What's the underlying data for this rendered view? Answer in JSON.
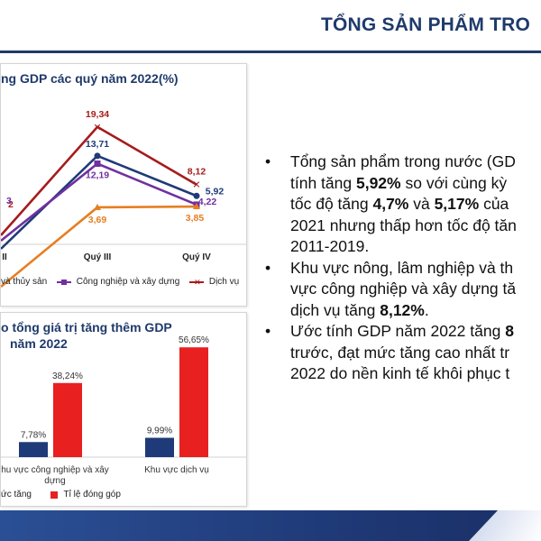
{
  "header": {
    "title": "TỔNG SẢN PHẨM TRO"
  },
  "line_chart": {
    "title": "ng GDP các quý năm 2022(%)",
    "legend": [
      {
        "label": "và thủy sản",
        "color": "#e67e22"
      },
      {
        "label": "Công nghiệp và xây dựng",
        "color": "#7030a0"
      },
      {
        "label": "Dịch vụ",
        "color": "#a61c1c"
      }
    ]
  },
  "bar_chart": {
    "title_line1": "o tổng giá trị tăng thêm GDP",
    "title_line2": "năm 2022",
    "legend": [
      {
        "label": "ức tăng",
        "color": "#1f3a78"
      },
      {
        "label": "Tỉ lệ đóng góp",
        "color": "#e82020"
      }
    ]
  },
  "chart_data": [
    {
      "type": "line",
      "title": "ng GDP các quý năm 2022(%)",
      "categories": [
        "II",
        "Quý III",
        "Quý IV"
      ],
      "series": [
        {
          "name": "Dịch vụ",
          "color": "#a61c1c",
          "values": [
            null,
            19.34,
            8.12
          ],
          "labels": [
            "2",
            "19,34",
            "8,12"
          ]
        },
        {
          "name": "GDP",
          "color": "#1f3a78",
          "values": [
            null,
            13.71,
            5.92
          ],
          "labels": [
            "",
            "13,71",
            "5,92"
          ]
        },
        {
          "name": "Công nghiệp và xây dựng",
          "color": "#7030a0",
          "values": [
            null,
            12.19,
            4.22
          ],
          "labels": [
            "3",
            "12,19",
            "4,22"
          ]
        },
        {
          "name": "và thủy sản",
          "color": "#e67e22",
          "values": [
            null,
            3.69,
            3.85
          ],
          "labels": [
            "",
            "3,69",
            "3,85"
          ]
        }
      ]
    },
    {
      "type": "bar",
      "categories": [
        "hu vực công nghiệp và xây dựng",
        "Khu vực dịch vụ"
      ],
      "series": [
        {
          "name": "ức tăng",
          "color": "#1f3a78",
          "values": [
            7.78,
            9.99
          ],
          "labels": [
            "7,78%",
            "9,99%"
          ]
        },
        {
          "name": "Tỉ lệ đóng góp",
          "color": "#e82020",
          "values": [
            38.24,
            56.65
          ],
          "labels": [
            "38,24%",
            "56,65%"
          ]
        }
      ],
      "ylim": [
        0,
        60
      ]
    }
  ],
  "bullets": [
    {
      "lines": [
        "Tổng sản phẩm trong nước (GD",
        "tính tăng <b>5,92%</b> so với cùng kỳ",
        "tốc độ tăng <b>4,7%</b> và <b>5,17%</b> của",
        "2021 nhưng thấp hơn tốc độ tăn",
        "2011-2019."
      ]
    },
    {
      "lines": [
        "Khu vực nông, lâm nghiệp và th",
        "vực công nghiệp và xây dựng tă",
        "dịch vụ tăng <b>8,12%</b>."
      ]
    },
    {
      "lines": [
        "Ước tính GDP năm 2022 tăng <b>8</b>",
        "trước, đạt mức tăng cao nhất tr",
        "2022 do nền kinh tế khôi phục t"
      ]
    }
  ],
  "bullet_symbol": "•"
}
